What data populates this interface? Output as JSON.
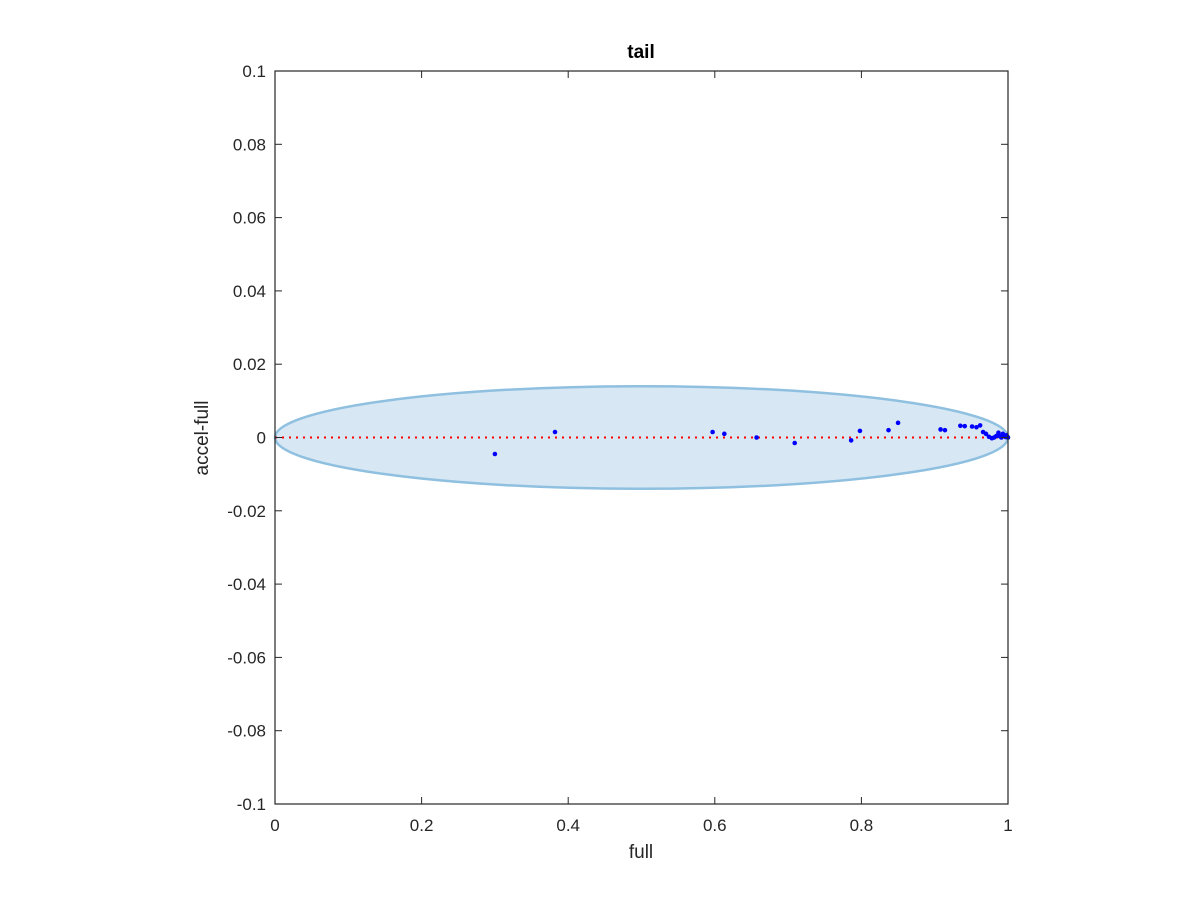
{
  "chart_data": {
    "type": "scatter",
    "title": "tail",
    "xlabel": "full",
    "ylabel": "accel-full",
    "xlim": [
      0,
      1
    ],
    "ylim": [
      -0.1,
      0.1
    ],
    "x_ticks": [
      0,
      0.2,
      0.4,
      0.6,
      0.8,
      1
    ],
    "x_tick_labels": [
      "0",
      "0.2",
      "0.4",
      "0.6",
      "0.8",
      "1"
    ],
    "y_ticks": [
      0.1,
      0.08,
      0.06,
      0.04,
      0.02,
      0,
      -0.02,
      -0.04,
      -0.06,
      -0.08,
      -0.1
    ],
    "y_tick_labels": [
      "0.1",
      "0.08",
      "0.06",
      "0.04",
      "0.02",
      "0",
      "-0.02",
      "-0.04",
      "-0.06",
      "-0.08",
      "-0.1"
    ],
    "grid": false,
    "ellipse": {
      "center": [
        0.5,
        0.0
      ],
      "semi_axis_x": 0.5,
      "semi_axis_y": 0.014,
      "fill": "#d7e7f4",
      "stroke": "#8fc0e0"
    },
    "reference_line": {
      "y": 0,
      "color": "#ff0000",
      "style": "dotted"
    },
    "point_color": "#0000ff",
    "points": [
      {
        "x": 0.3,
        "y": -0.0045
      },
      {
        "x": 0.382,
        "y": 0.0015
      },
      {
        "x": 0.597,
        "y": 0.0015
      },
      {
        "x": 0.613,
        "y": 0.001
      },
      {
        "x": 0.657,
        "y": 0.0
      },
      {
        "x": 0.709,
        "y": -0.0015
      },
      {
        "x": 0.786,
        "y": -0.0008
      },
      {
        "x": 0.798,
        "y": 0.0018
      },
      {
        "x": 0.837,
        "y": 0.002
      },
      {
        "x": 0.85,
        "y": 0.004
      },
      {
        "x": 0.908,
        "y": 0.0022
      },
      {
        "x": 0.914,
        "y": 0.002
      },
      {
        "x": 0.935,
        "y": 0.0032
      },
      {
        "x": 0.941,
        "y": 0.0031
      },
      {
        "x": 0.951,
        "y": 0.003
      },
      {
        "x": 0.957,
        "y": 0.0028
      },
      {
        "x": 0.962,
        "y": 0.0033
      },
      {
        "x": 0.966,
        "y": 0.0015
      },
      {
        "x": 0.97,
        "y": 0.001
      },
      {
        "x": 0.974,
        "y": 0.0002
      },
      {
        "x": 0.978,
        "y": -0.0002
      },
      {
        "x": 0.981,
        "y": 0.0
      },
      {
        "x": 0.984,
        "y": 0.0004
      },
      {
        "x": 0.987,
        "y": 0.0013
      },
      {
        "x": 0.989,
        "y": 0.0003
      },
      {
        "x": 0.991,
        "y": 0.0
      },
      {
        "x": 0.993,
        "y": 0.001
      },
      {
        "x": 0.995,
        "y": 0.0005
      },
      {
        "x": 0.997,
        "y": 0.0001
      },
      {
        "x": 0.998,
        "y": 0.0006
      },
      {
        "x": 0.999,
        "y": 0.0002
      },
      {
        "x": 1.0,
        "y": 0.0
      }
    ]
  }
}
